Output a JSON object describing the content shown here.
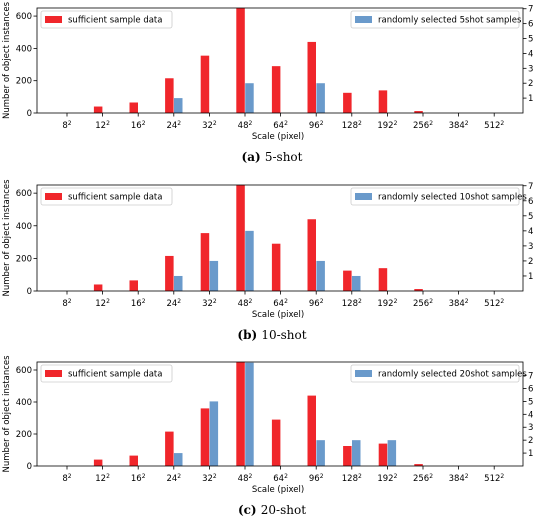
{
  "colors": {
    "sufficient": "#f0262b",
    "fewshot": "#6a9acb"
  },
  "chart_data": [
    {
      "type": "bar",
      "caption": {
        "label": "(a)",
        "text": "5-shot"
      },
      "xlabel": "Scale (pixel)",
      "ylabel": "Number of object instances",
      "categories": [
        "8²",
        "12²",
        "16²",
        "24²",
        "32²",
        "48²",
        "64²",
        "96²",
        "128²",
        "192²",
        "256²",
        "384²",
        "512²"
      ],
      "ylim": [
        0,
        650
      ],
      "yticks": [
        0,
        200,
        400,
        600
      ],
      "y2lim": [
        0,
        7.05
      ],
      "y2ticks": [
        1,
        2,
        3,
        4,
        5,
        6,
        7
      ],
      "grid": false,
      "series": [
        {
          "name": "sufficient sample data",
          "axis": "left",
          "legend": "top-left",
          "values": [
            0,
            40,
            65,
            215,
            355,
            650,
            290,
            440,
            125,
            140,
            12,
            0,
            0
          ]
        },
        {
          "name": "randomly selected 5shot samples",
          "axis": "right",
          "legend": "top-right",
          "values": [
            0,
            0,
            0,
            1,
            0,
            2,
            0,
            2,
            0,
            0,
            0,
            0,
            0
          ]
        }
      ]
    },
    {
      "type": "bar",
      "caption": {
        "label": "(b)",
        "text": "10-shot"
      },
      "xlabel": "Scale (pixel)",
      "ylabel": "Number of object instances",
      "categories": [
        "8²",
        "12²",
        "16²",
        "24²",
        "32²",
        "48²",
        "64²",
        "96²",
        "128²",
        "192²",
        "256²",
        "384²",
        "512²"
      ],
      "ylim": [
        0,
        650
      ],
      "yticks": [
        0,
        200,
        400,
        600
      ],
      "y2lim": [
        0,
        7.05
      ],
      "y2ticks": [
        1,
        2,
        3,
        4,
        5,
        6,
        7
      ],
      "grid": false,
      "series": [
        {
          "name": "sufficient sample data",
          "axis": "left",
          "legend": "top-left",
          "values": [
            0,
            40,
            65,
            215,
            355,
            650,
            290,
            440,
            125,
            140,
            12,
            0,
            0
          ]
        },
        {
          "name": "randomly selected 10shot samples",
          "axis": "right",
          "legend": "top-right",
          "values": [
            0,
            0,
            0,
            1,
            2,
            4,
            0,
            2,
            1,
            0,
            0,
            0,
            0
          ]
        }
      ]
    },
    {
      "type": "bar",
      "caption": {
        "label": "(c)",
        "text": "20-shot"
      },
      "xlabel": "Scale (pixel)",
      "ylabel": "Number of object instances",
      "categories": [
        "8²",
        "12²",
        "16²",
        "24²",
        "32²",
        "48²",
        "64²",
        "96²",
        "128²",
        "192²",
        "256²",
        "384²",
        "512²"
      ],
      "ylim": [
        0,
        650
      ],
      "yticks": [
        0,
        200,
        400,
        600
      ],
      "y2lim": [
        0,
        8.05
      ],
      "y2ticks": [
        1,
        2,
        3,
        4,
        5,
        6,
        7
      ],
      "grid": false,
      "series": [
        {
          "name": "sufficient sample data",
          "axis": "left",
          "legend": "top-left",
          "values": [
            0,
            40,
            65,
            215,
            360,
            650,
            290,
            440,
            125,
            140,
            12,
            0,
            0
          ]
        },
        {
          "name": "randomly selected 20shot samples",
          "axis": "right",
          "legend": "top-right",
          "values": [
            0,
            0,
            0,
            1,
            5,
            8,
            0,
            2,
            2,
            2,
            0,
            0,
            0
          ]
        }
      ]
    }
  ]
}
